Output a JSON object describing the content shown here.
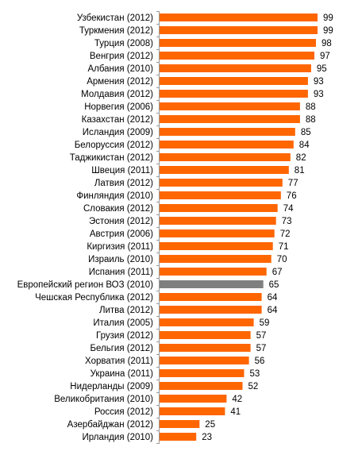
{
  "chart_data": {
    "type": "bar",
    "orientation": "horizontal",
    "title": "",
    "xlabel": "",
    "ylabel": "",
    "xlim": [
      0,
      100
    ],
    "grid": false,
    "legend": "none",
    "colors": {
      "bar": "#FF6600",
      "highlight": "#7F7F7F"
    },
    "highlight_category": "Европейский регион ВОЗ (2010)",
    "categories": [
      "Узбекистан (2012)",
      "Туркмения (2012)",
      "Турция (2008)",
      "Венгрия (2012)",
      "Албания (2010)",
      "Армения (2012)",
      "Молдавия (2012)",
      "Норвегия (2006)",
      "Казахстан (2012)",
      "Исландия (2009)",
      "Белоруссия (2012)",
      "Таджикистан (2012)",
      "Швеция (2011)",
      "Латвия (2012)",
      "Финляндия (2010)",
      "Словакия (2012)",
      "Эстония (2012)",
      "Австрия (2006)",
      "Киргизия (2011)",
      "Израиль (2010)",
      "Испания (2011)",
      "Европейский регион ВОЗ (2010)",
      "Чешская Республика (2012)",
      "Литва (2012)",
      "Италия (2005)",
      "Грузия (2012)",
      "Бельгия (2012)",
      "Хорватия (2011)",
      "Украина (2011)",
      "Нидерланды (2009)",
      "Великобритания (2010)",
      "Россия (2012)",
      "Азербайджан (2012)",
      "Ирландия (2010)"
    ],
    "values": [
      99,
      99,
      98,
      97,
      95,
      93,
      93,
      88,
      88,
      85,
      84,
      82,
      81,
      77,
      76,
      74,
      73,
      72,
      71,
      70,
      67,
      65,
      64,
      64,
      59,
      57,
      57,
      56,
      53,
      52,
      42,
      41,
      25,
      23
    ]
  }
}
